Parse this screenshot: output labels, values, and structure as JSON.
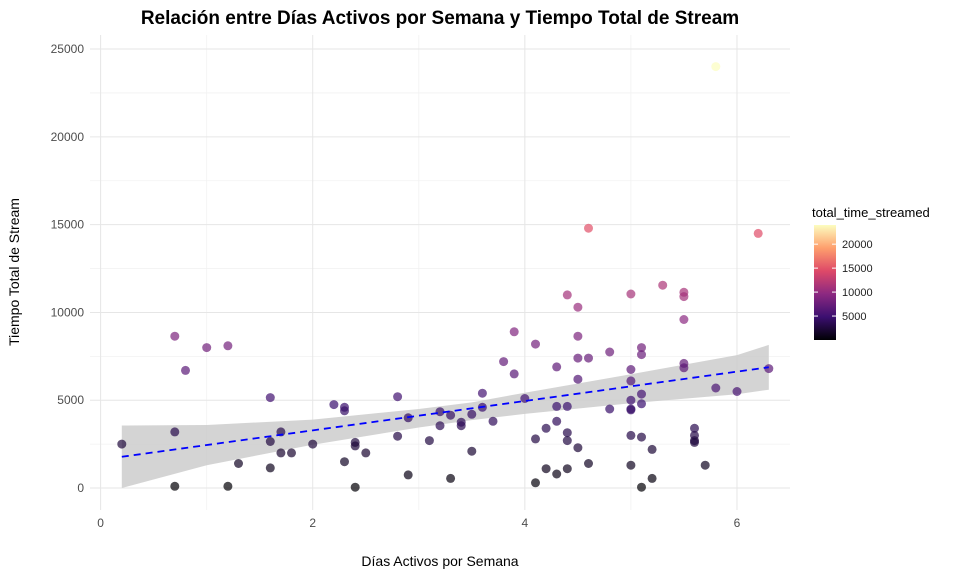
{
  "chart_data": {
    "type": "scatter",
    "title": "Relación entre Días Activos por Semana y Tiempo Total de Stream",
    "xlabel": "Días Activos por Semana",
    "ylabel": "Tiempo Total de Stream",
    "xlim": [
      -0.1,
      6.5
    ],
    "ylim": [
      -1250,
      25800
    ],
    "xticks": [
      0,
      2,
      4,
      6
    ],
    "yticks": [
      0,
      5000,
      10000,
      15000,
      20000,
      25000
    ],
    "xtick_labels": [
      "0",
      "2",
      "4",
      "6"
    ],
    "ytick_labels": [
      "0",
      "5000",
      "10000",
      "15000",
      "20000",
      "25000"
    ],
    "grid": true,
    "legend": {
      "title": "total_time_streamed",
      "placement": "right",
      "type": "colorbar",
      "range": [
        0,
        24000
      ],
      "ticks": [
        5000,
        10000,
        15000,
        20000
      ],
      "tick_labels": [
        "5000",
        "10000",
        "15000",
        "20000"
      ],
      "colormap": [
        "#000004",
        "#3b0f70",
        "#8c2981",
        "#de4968",
        "#fe9f6d",
        "#fcfdbf"
      ]
    },
    "series": [
      {
        "kind": "points",
        "x": [
          0.2,
          0.7,
          0.7,
          0.7,
          0.8,
          1.0,
          1.2,
          1.2,
          1.3,
          1.6,
          1.6,
          1.6,
          1.7,
          1.7,
          1.8,
          2.0,
          2.2,
          2.3,
          2.3,
          2.3,
          2.4,
          2.4,
          2.4,
          2.5,
          2.8,
          2.8,
          2.9,
          2.9,
          3.1,
          3.2,
          3.2,
          3.3,
          3.3,
          3.4,
          3.4,
          3.5,
          3.5,
          3.6,
          3.6,
          3.7,
          3.8,
          3.9,
          3.9,
          4.0,
          4.1,
          4.1,
          4.1,
          4.2,
          4.2,
          4.3,
          4.3,
          4.3,
          4.3,
          4.4,
          4.4,
          4.4,
          4.4,
          4.4,
          4.5,
          4.5,
          4.5,
          4.5,
          4.5,
          4.6,
          4.6,
          4.6,
          4.8,
          4.8,
          5.0,
          5.0,
          5.0,
          5.0,
          5.0,
          5.0,
          5.0,
          5.0,
          5.1,
          5.1,
          5.1,
          5.1,
          5.1,
          5.1,
          5.2,
          5.2,
          5.3,
          5.5,
          5.5,
          5.5,
          5.5,
          5.5,
          5.6,
          5.6,
          5.6,
          5.6,
          5.7,
          5.8,
          5.8,
          6.0,
          6.2,
          6.3
        ],
        "y": [
          2500,
          3200,
          100,
          8650,
          6700,
          8000,
          8100,
          100,
          1400,
          5150,
          2650,
          1150,
          3200,
          2000,
          2000,
          2500,
          4750,
          4600,
          4400,
          1500,
          2600,
          2400,
          50,
          2000,
          5200,
          2950,
          4000,
          750,
          2700,
          4350,
          3550,
          4150,
          550,
          3550,
          3750,
          4200,
          2100,
          5400,
          4600,
          3800,
          7200,
          8900,
          6500,
          5100,
          8200,
          2800,
          300,
          3400,
          1100,
          6900,
          4650,
          3800,
          800,
          11000,
          4650,
          3150,
          2700,
          1100,
          10300,
          8650,
          7400,
          6200,
          2300,
          14800,
          7400,
          1400,
          7750,
          4500,
          11050,
          6750,
          6100,
          5000,
          4500,
          4450,
          3000,
          1300,
          8000,
          7600,
          5350,
          4800,
          2900,
          50,
          2200,
          550,
          11550,
          11150,
          10900,
          9600,
          7100,
          6850,
          3400,
          3000,
          2700,
          2600,
          1300,
          24000,
          5700,
          5500,
          14500,
          6800
        ],
        "opacity": 0.7
      },
      {
        "kind": "trend-line",
        "style": "dashed",
        "color": "#0000ff",
        "x": [
          0.2,
          6.3
        ],
        "y": [
          1780,
          6880
        ]
      },
      {
        "kind": "confidence-band",
        "color": "#cccccc",
        "x": [
          0.2,
          1.0,
          2.0,
          3.0,
          3.5,
          4.0,
          5.0,
          6.0,
          6.3
        ],
        "lower": [
          0,
          1300,
          2470,
          3450,
          3870,
          4220,
          4830,
          5340,
          5600
        ],
        "upper": [
          3560,
          3590,
          3900,
          4500,
          4880,
          5430,
          6480,
          7570,
          8150
        ]
      }
    ]
  }
}
